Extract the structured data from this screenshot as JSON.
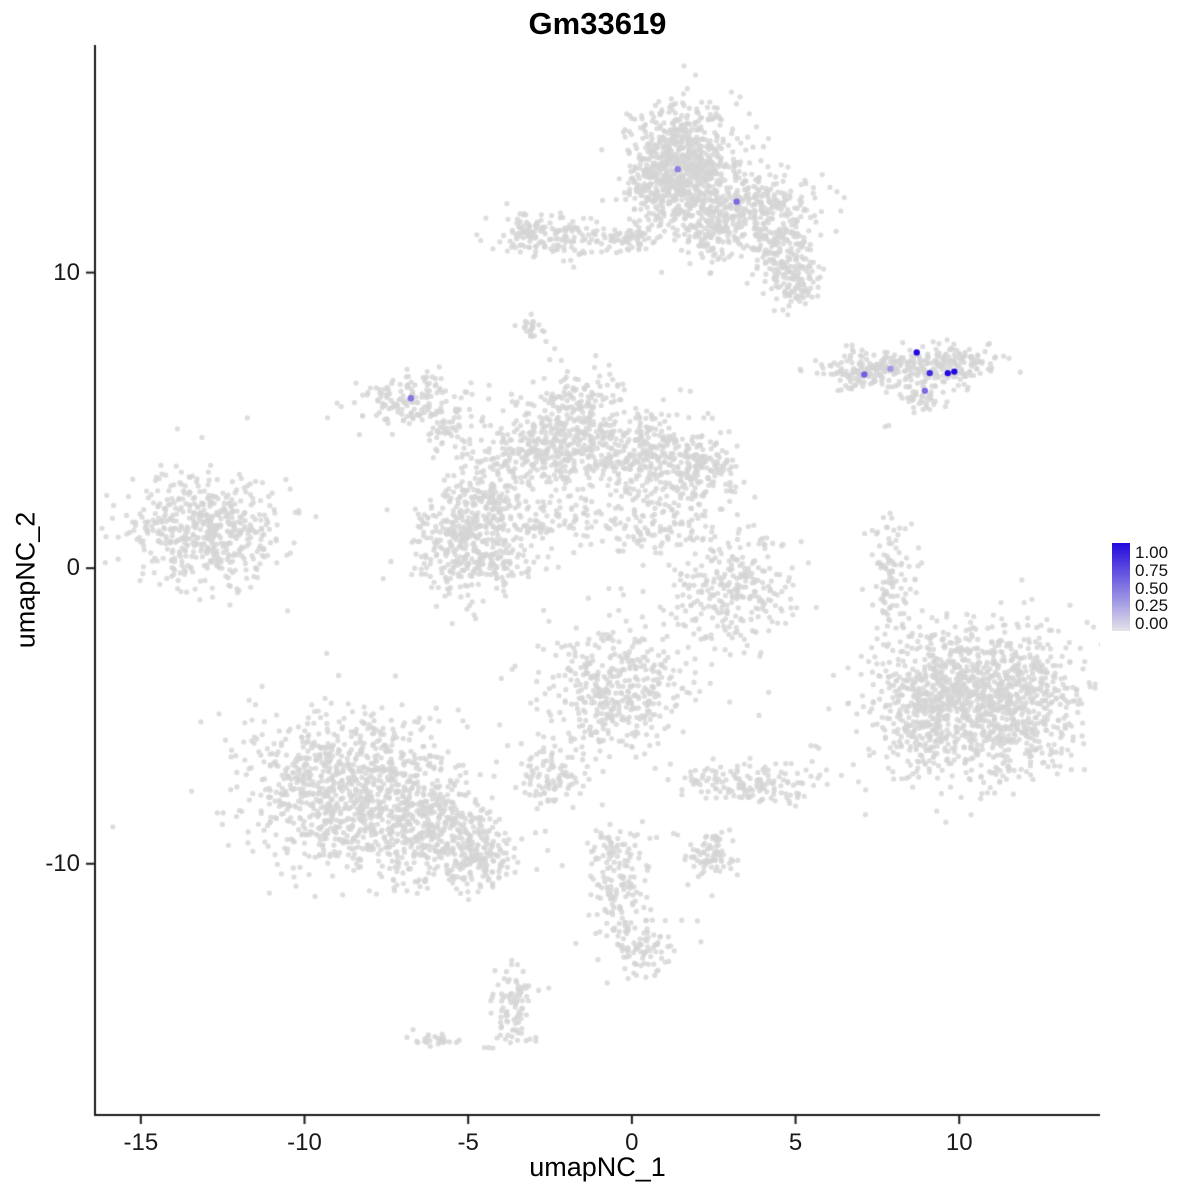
{
  "chart_data": {
    "type": "scatter",
    "title": "Gm33619",
    "xlabel": "umapNC_1",
    "ylabel": "umapNC_2",
    "xlim": [
      -16.4,
      14.3
    ],
    "ylim": [
      -18.5,
      17.7
    ],
    "x_ticks": [
      "-15",
      "-10",
      "-5",
      "0",
      "5",
      "10"
    ],
    "x_tick_values": [
      -15,
      -10,
      -5,
      0,
      5,
      10
    ],
    "y_ticks": [
      "10",
      "0",
      "-10"
    ],
    "y_tick_values": [
      10,
      0,
      -10
    ],
    "grid": false,
    "legend_position": "right",
    "colorscale": {
      "low": "#E3E3E8",
      "high": "#2209DC"
    },
    "legend": {
      "labels": [
        "1.00",
        "0.75",
        "0.50",
        "0.25",
        "0.00"
      ]
    },
    "style": {
      "background_point_color": "#D4D4D4",
      "background_point_alpha": 0.8,
      "point_radius": 2.6,
      "highlight_radius": 3.2,
      "axis_color": "#1a1a1a"
    },
    "seed": 7,
    "clusters": [
      {
        "cx": 1.6,
        "cy": 13.8,
        "sx": 0.8,
        "sy": 1.0,
        "n": 650
      },
      {
        "cx": 0.9,
        "cy": 13.0,
        "sx": 0.5,
        "sy": 0.7,
        "n": 180
      },
      {
        "cx": 3.4,
        "cy": 12.2,
        "sx": 1.0,
        "sy": 0.7,
        "n": 380
      },
      {
        "cx": 4.6,
        "cy": 10.9,
        "sx": 0.5,
        "sy": 0.5,
        "n": 120
      },
      {
        "cx": 5.0,
        "cy": 9.7,
        "sx": 0.45,
        "sy": 0.5,
        "n": 110
      },
      {
        "cx": 2.3,
        "cy": 11.3,
        "sx": 0.45,
        "sy": 0.5,
        "n": 80
      },
      {
        "cx": -2.2,
        "cy": 11.2,
        "sx": 0.8,
        "sy": 0.35,
        "n": 130
      },
      {
        "cx": -3.3,
        "cy": 11.4,
        "sx": 0.3,
        "sy": 0.25,
        "n": 40
      },
      {
        "cx": 0.0,
        "cy": 11.15,
        "sx": 0.5,
        "sy": 0.2,
        "n": 60
      },
      {
        "cx": -3.0,
        "cy": 8.2,
        "sx": 0.25,
        "sy": 0.2,
        "n": 22
      },
      {
        "cx": -1.5,
        "cy": 5.6,
        "sx": 0.7,
        "sy": 0.6,
        "n": 110
      },
      {
        "cx": 8.4,
        "cy": 6.8,
        "sx": 1.3,
        "sy": 0.32,
        "n": 240
      },
      {
        "cx": 7.0,
        "cy": 6.6,
        "sx": 0.5,
        "sy": 0.25,
        "n": 60
      },
      {
        "cx": 8.8,
        "cy": 5.8,
        "sx": 0.35,
        "sy": 0.3,
        "n": 45
      },
      {
        "cx": 9.9,
        "cy": 6.9,
        "sx": 0.4,
        "sy": 0.3,
        "n": 60
      },
      {
        "cx": -6.8,
        "cy": 5.7,
        "sx": 0.85,
        "sy": 0.45,
        "n": 150
      },
      {
        "cx": -5.6,
        "cy": 4.7,
        "sx": 0.5,
        "sy": 0.4,
        "n": 50
      },
      {
        "cx": -1.4,
        "cy": 4.3,
        "sx": 1.2,
        "sy": 0.8,
        "n": 320
      },
      {
        "cx": 0.8,
        "cy": 3.7,
        "sx": 0.9,
        "sy": 0.7,
        "n": 240
      },
      {
        "cx": 2.2,
        "cy": 3.3,
        "sx": 0.6,
        "sy": 0.6,
        "n": 110
      },
      {
        "cx": -3.3,
        "cy": 3.8,
        "sx": 0.9,
        "sy": 0.5,
        "n": 150
      },
      {
        "cx": -4.4,
        "cy": 2.5,
        "sx": 0.55,
        "sy": 0.55,
        "n": 120
      },
      {
        "cx": -5.2,
        "cy": 0.9,
        "sx": 0.75,
        "sy": 0.95,
        "n": 320
      },
      {
        "cx": -3.9,
        "cy": 0.4,
        "sx": 0.5,
        "sy": 0.5,
        "n": 90
      },
      {
        "cx": -2.2,
        "cy": 1.6,
        "sx": 0.9,
        "sy": 0.35,
        "n": 90
      },
      {
        "cx": 0.8,
        "cy": 1.5,
        "sx": 1.0,
        "sy": 0.7,
        "n": 130
      },
      {
        "cx": -13.0,
        "cy": 1.3,
        "sx": 1.2,
        "sy": 0.95,
        "n": 520
      },
      {
        "cx": 3.1,
        "cy": -0.8,
        "sx": 1.0,
        "sy": 1.0,
        "n": 270
      },
      {
        "cx": 8.0,
        "cy": -0.35,
        "sx": 0.35,
        "sy": 1.0,
        "n": 110
      },
      {
        "cx": 10.8,
        "cy": -4.5,
        "sx": 1.5,
        "sy": 1.3,
        "n": 1150
      },
      {
        "cx": 8.8,
        "cy": -4.8,
        "sx": 0.8,
        "sy": 1.2,
        "n": 230
      },
      {
        "cx": -0.4,
        "cy": -4.1,
        "sx": 1.1,
        "sy": 1.1,
        "n": 420
      },
      {
        "cx": -8.5,
        "cy": -7.5,
        "sx": 1.6,
        "sy": 1.3,
        "n": 950
      },
      {
        "cx": -6.2,
        "cy": -8.8,
        "sx": 1.0,
        "sy": 0.9,
        "n": 350
      },
      {
        "cx": -4.7,
        "cy": -9.8,
        "sx": 0.6,
        "sy": 0.5,
        "n": 150
      },
      {
        "cx": -2.4,
        "cy": -7.0,
        "sx": 0.5,
        "sy": 0.5,
        "n": 90
      },
      {
        "cx": 3.7,
        "cy": -7.3,
        "sx": 1.1,
        "sy": 0.35,
        "n": 150
      },
      {
        "cx": -0.4,
        "cy": -10.4,
        "sx": 0.45,
        "sy": 0.95,
        "n": 150
      },
      {
        "cx": 2.4,
        "cy": -9.7,
        "sx": 0.4,
        "sy": 0.4,
        "n": 80
      },
      {
        "cx": 0.3,
        "cy": -12.9,
        "sx": 0.55,
        "sy": 0.5,
        "n": 90
      },
      {
        "cx": -3.6,
        "cy": -14.8,
        "sx": 0.35,
        "sy": 0.7,
        "n": 90
      },
      {
        "cx": -6.0,
        "cy": -15.9,
        "sx": 0.4,
        "sy": 0.15,
        "n": 25
      },
      {
        "cx": 7.8,
        "cy": 4.8,
        "sx": 0.1,
        "sy": 0.1,
        "n": 2
      },
      {
        "cx": 2.6,
        "cy": -2.3,
        "sx": 0.3,
        "sy": 0.3,
        "n": 5
      },
      {
        "cx": 5.6,
        "cy": -6.0,
        "sx": 0.2,
        "sy": 0.2,
        "n": 3
      },
      {
        "cx": 9.2,
        "cy": -2.4,
        "sx": 0.15,
        "sy": 0.15,
        "n": 2
      }
    ],
    "expressing_points": [
      {
        "x": 1.4,
        "y": 13.5,
        "value": 0.45
      },
      {
        "x": 3.2,
        "y": 12.4,
        "value": 0.55
      },
      {
        "x": -6.75,
        "y": 5.75,
        "value": 0.5
      },
      {
        "x": 8.7,
        "y": 7.3,
        "value": 1.0
      },
      {
        "x": 9.1,
        "y": 6.6,
        "value": 0.85
      },
      {
        "x": 9.65,
        "y": 6.6,
        "value": 1.0
      },
      {
        "x": 9.85,
        "y": 6.65,
        "value": 1.0
      },
      {
        "x": 7.1,
        "y": 6.55,
        "value": 0.6
      },
      {
        "x": 7.9,
        "y": 6.75,
        "value": 0.35
      },
      {
        "x": 8.95,
        "y": 6.0,
        "value": 0.55
      }
    ]
  }
}
